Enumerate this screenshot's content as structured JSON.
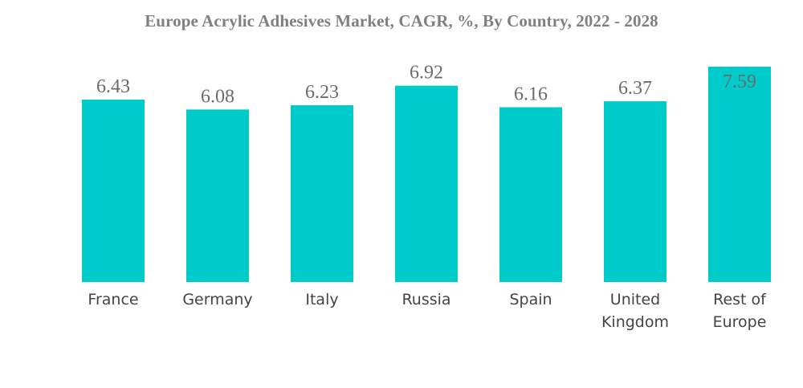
{
  "chart_data": {
    "type": "bar",
    "title": "Europe Acrylic Adhesives Market, CAGR, %, By Country, 2022 - 2028",
    "categories": [
      [
        "France"
      ],
      [
        "Germany"
      ],
      [
        "Italy"
      ],
      [
        "Russia"
      ],
      [
        "Spain"
      ],
      [
        "United",
        "Kingdom"
      ],
      [
        "Rest of",
        "Europe"
      ]
    ],
    "values": [
      6.43,
      6.08,
      6.23,
      6.92,
      6.16,
      6.37,
      7.59
    ],
    "value_labels": [
      "6.43",
      "6.08",
      "6.23",
      "6.92",
      "6.16",
      "6.37",
      "7.59"
    ],
    "xlabel": "",
    "ylabel": "",
    "ylim": [
      0,
      7.59
    ],
    "grid": false,
    "legend": "none",
    "bar_color": "#00CBCB",
    "last_label_inside_bar": true
  }
}
